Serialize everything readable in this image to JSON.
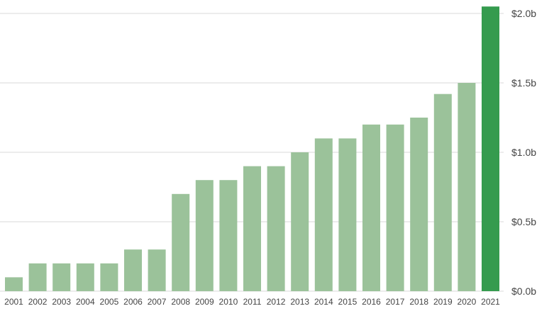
{
  "chart_data": {
    "type": "bar",
    "title": "",
    "xlabel": "",
    "ylabel": "",
    "categories": [
      "2001",
      "2002",
      "2003",
      "2004",
      "2005",
      "2006",
      "2007",
      "2008",
      "2009",
      "2010",
      "2011",
      "2012",
      "2013",
      "2014",
      "2015",
      "2016",
      "2017",
      "2018",
      "2019",
      "2020",
      "2021"
    ],
    "values": [
      0.1,
      0.2,
      0.2,
      0.2,
      0.2,
      0.3,
      0.3,
      0.7,
      0.8,
      0.8,
      0.9,
      0.9,
      1.0,
      1.1,
      1.1,
      1.2,
      1.2,
      1.25,
      1.42,
      1.5,
      2.05
    ],
    "unit": "billion USD",
    "ylim": [
      0,
      2.0
    ],
    "yticks": [
      0,
      0.5,
      1.0,
      1.5,
      2.0
    ],
    "ytick_labels": [
      "$0.0b",
      "$0.5b",
      "$1.0b",
      "$1.5b",
      "$2.0b"
    ],
    "y_axis_position": "right",
    "grid": true,
    "legend": "none",
    "highlight_index": 20,
    "colors": {
      "bar": "#9bc29a",
      "highlight": "#359b4e",
      "grid": "#d9d9d9",
      "text": "#444444"
    }
  }
}
